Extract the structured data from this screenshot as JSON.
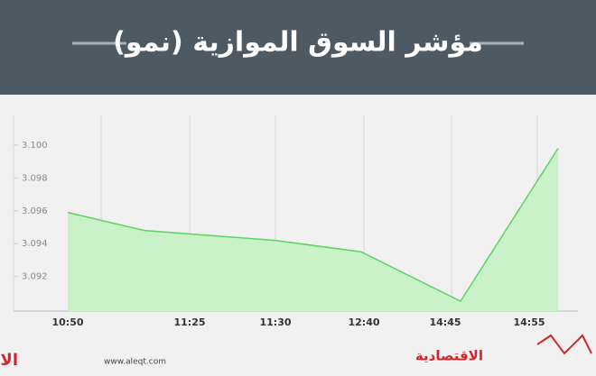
{
  "chart_data": {
    "type": "area",
    "title": "مؤشر السوق الموازية (نمو)",
    "categories": [
      "10:50",
      "11:25",
      "11:30",
      "12:40",
      "14:45",
      "14:55"
    ],
    "values": [
      3.0959,
      3.0948,
      3.0942,
      3.0935,
      3.0905,
      3.0998
    ],
    "color": "#5dd35d",
    "fill": "#c9f2c9",
    "ylim": [
      3.0899,
      3.1018
    ],
    "yticks": [
      3.092,
      3.094,
      3.096,
      3.098,
      {
        "value": 3.1,
        "label": "3.100"
      }
    ],
    "grid": true,
    "footer": {
      "brand_left": "الاقتصادية",
      "url": "www.aleqt.com",
      "brand_right": "الاقتصادية"
    }
  }
}
